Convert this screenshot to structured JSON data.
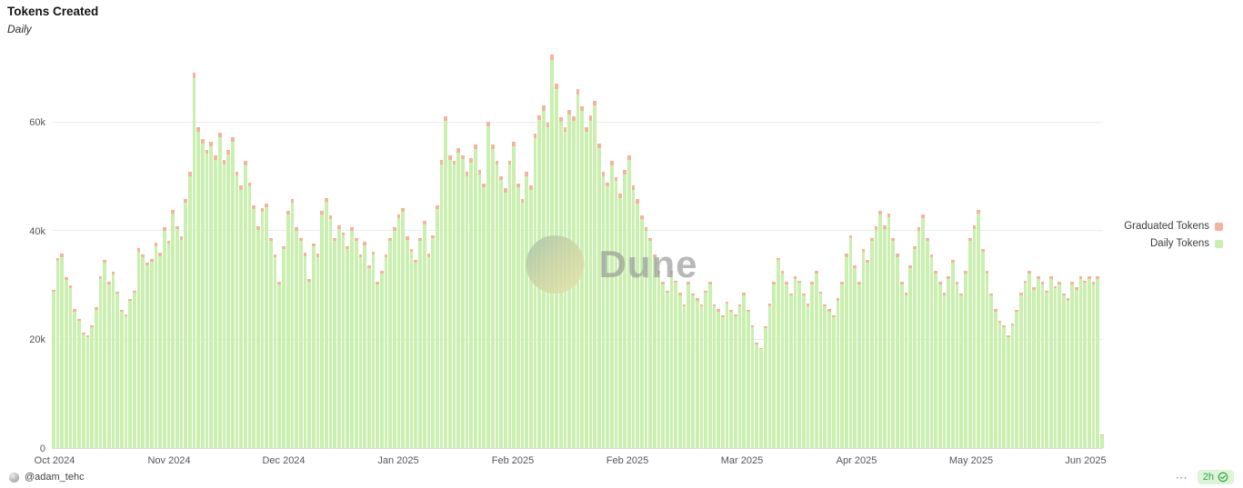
{
  "header": {
    "title": "Tokens Created",
    "subtitle": "Daily"
  },
  "watermark": {
    "text": "Dune"
  },
  "legend": {
    "items": [
      {
        "label": "Graduated Tokens",
        "color": "#f4b49b"
      },
      {
        "label": "Daily Tokens",
        "color": "#c9f0ae"
      }
    ]
  },
  "footer": {
    "author": "@adam_tehc",
    "more": "⋯",
    "refresh_age": "2h",
    "refresh_color": "#2da44e",
    "refresh_bg": "#ddf5d6"
  },
  "chart_data": {
    "type": "bar",
    "stacked": true,
    "title": "Tokens Created",
    "subtitle": "Daily",
    "xlabel": "",
    "ylabel": "",
    "grid": "horizontal",
    "legend_position": "right",
    "ylim": [
      0,
      72500
    ],
    "y_ticks": [
      {
        "value": 0,
        "label": "0"
      },
      {
        "value": 20000,
        "label": "20k"
      },
      {
        "value": 40000,
        "label": "40k"
      },
      {
        "value": 60000,
        "label": "60k"
      }
    ],
    "x_tick_labels": [
      "Oct 2024",
      "Nov 2024",
      "Dec 2024",
      "Jan 2025",
      "Feb 2025",
      "Feb 2025",
      "Mar 2025",
      "Apr 2025",
      "May 2025",
      "Jun 2025"
    ],
    "x_unit": "day",
    "series": [
      {
        "name": "Graduated Tokens",
        "color": "#f4b49b",
        "values": [
          420,
          480,
          560,
          480,
          420,
          420,
          350,
          350,
          350,
          350,
          420,
          480,
          480,
          480,
          480,
          420,
          420,
          350,
          420,
          420,
          560,
          560,
          480,
          480,
          560,
          560,
          640,
          560,
          640,
          640,
          560,
          710,
          780,
          1000,
          860,
          860,
          780,
          860,
          780,
          860,
          780,
          780,
          860,
          780,
          710,
          780,
          710,
          640,
          640,
          640,
          640,
          560,
          560,
          480,
          560,
          640,
          710,
          640,
          560,
          560,
          480,
          560,
          560,
          640,
          710,
          640,
          560,
          640,
          560,
          560,
          640,
          560,
          560,
          560,
          480,
          560,
          480,
          480,
          560,
          560,
          640,
          640,
          640,
          560,
          560,
          480,
          560,
          640,
          560,
          560,
          640,
          780,
          930,
          780,
          780,
          780,
          780,
          780,
          780,
          860,
          780,
          710,
          860,
          860,
          780,
          710,
          710,
          780,
          860,
          710,
          710,
          780,
          710,
          860,
          930,
          930,
          860,
          1080,
          1000,
          930,
          860,
          930,
          930,
          1000,
          930,
          860,
          930,
          930,
          860,
          780,
          710,
          780,
          710,
          710,
          780,
          780,
          710,
          710,
          640,
          640,
          560,
          560,
          480,
          480,
          420,
          480,
          480,
          420,
          420,
          480,
          420,
          420,
          420,
          420,
          480,
          420,
          420,
          350,
          420,
          420,
          350,
          420,
          420,
          420,
          350,
          280,
          280,
          350,
          420,
          480,
          480,
          480,
          480,
          420,
          480,
          480,
          420,
          420,
          480,
          480,
          420,
          420,
          420,
          350,
          420,
          480,
          560,
          560,
          480,
          480,
          560,
          480,
          560,
          640,
          640,
          640,
          640,
          560,
          560,
          480,
          420,
          480,
          560,
          640,
          640,
          560,
          560,
          480,
          480,
          420,
          480,
          480,
          480,
          420,
          480,
          560,
          640,
          640,
          560,
          480,
          420,
          420,
          350,
          350,
          350,
          350,
          420,
          420,
          480,
          480,
          420,
          480,
          480,
          420,
          480,
          420,
          480,
          420,
          420,
          480,
          420,
          480,
          480,
          480,
          480,
          480,
          40
        ]
      },
      {
        "name": "Daily Tokens",
        "color": "#c9f0ae",
        "values": [
          28800,
          34500,
          35200,
          31000,
          29500,
          25200,
          23500,
          21000,
          20400,
          22300,
          25500,
          31200,
          34100,
          30200,
          32000,
          28400,
          25100,
          24200,
          27100,
          28600,
          36200,
          35100,
          33600,
          34400,
          37200,
          35400,
          40100,
          37600,
          43200,
          40300,
          38400,
          45200,
          50100,
          68200,
          58300,
          56100,
          54200,
          55600,
          53100,
          57200,
          52300,
          54100,
          56400,
          50200,
          47600,
          52100,
          48200,
          44100,
          40200,
          43600,
          44400,
          38200,
          35100,
          30200,
          36600,
          43100,
          45200,
          40100,
          38200,
          35400,
          30600,
          37100,
          35200,
          43100,
          45300,
          42200,
          38100,
          40400,
          39200,
          36600,
          40100,
          38200,
          35100,
          37400,
          33200,
          35600,
          30100,
          32200,
          35100,
          38200,
          40100,
          42400,
          43600,
          38400,
          36100,
          34200,
          38100,
          41200,
          35200,
          38600,
          44100,
          52300,
          60200,
          53100,
          52200,
          54400,
          53200,
          50100,
          52600,
          55100,
          50400,
          48100,
          59200,
          55100,
          52200,
          49400,
          47100,
          52200,
          55600,
          48100,
          45200,
          50100,
          47600,
          57100,
          60400,
          62200,
          59100,
          72400,
          66200,
          60100,
          58200,
          61400,
          60200,
          65200,
          62100,
          58200,
          60300,
          63100,
          55200,
          50100,
          48200,
          52100,
          49200,
          46100,
          50400,
          53100,
          47600,
          45100,
          42200,
          40100,
          38200,
          35100,
          32200,
          30100,
          28600,
          32100,
          30400,
          28200,
          26100,
          30200,
          28100,
          27200,
          26100,
          28600,
          30200,
          26100,
          25200,
          24100,
          26600,
          25100,
          24200,
          26100,
          28200,
          25100,
          22200,
          19100,
          18200,
          22100,
          26200,
          30100,
          34600,
          32100,
          30200,
          28100,
          31200,
          30400,
          28100,
          26200,
          30100,
          32200,
          28400,
          26100,
          25200,
          24100,
          27200,
          30100,
          35200,
          38600,
          33100,
          30200,
          36100,
          34200,
          38100,
          40200,
          43100,
          40400,
          42600,
          38100,
          35200,
          30100,
          28200,
          33100,
          36600,
          40100,
          42400,
          38200,
          35100,
          32200,
          30100,
          28200,
          31100,
          34200,
          30200,
          28100,
          32200,
          38100,
          40400,
          43200,
          36100,
          32200,
          28100,
          25200,
          23100,
          22200,
          20400,
          22600,
          25100,
          28200,
          30400,
          32100,
          29200,
          31100,
          30200,
          28600,
          31100,
          29400,
          30200,
          28100,
          27200,
          30100,
          29200,
          31100,
          30400,
          31200,
          30100,
          31100,
          2400
        ]
      }
    ]
  }
}
